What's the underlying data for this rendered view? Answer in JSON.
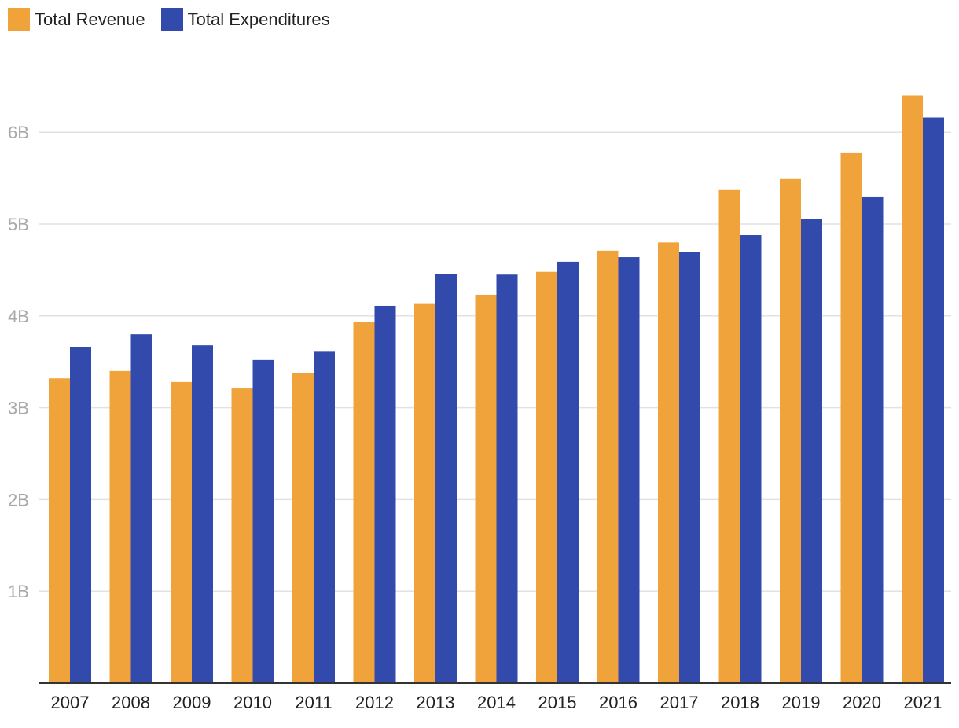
{
  "chart_data": {
    "type": "bar",
    "title": "",
    "xlabel": "",
    "ylabel": "",
    "categories": [
      "2007",
      "2008",
      "2009",
      "2010",
      "2011",
      "2012",
      "2013",
      "2014",
      "2015",
      "2016",
      "2017",
      "2018",
      "2019",
      "2020",
      "2021"
    ],
    "series": [
      {
        "name": "Total Revenue",
        "color": "#f0a33a",
        "values": [
          3.32,
          3.4,
          3.28,
          3.21,
          3.38,
          3.93,
          4.13,
          4.23,
          4.48,
          4.71,
          4.8,
          5.37,
          5.49,
          5.78,
          6.4
        ]
      },
      {
        "name": "Total Expenditures",
        "color": "#334aad",
        "values": [
          3.66,
          3.8,
          3.68,
          3.52,
          3.61,
          4.11,
          4.46,
          4.45,
          4.59,
          4.64,
          4.7,
          4.88,
          5.06,
          5.3,
          6.16
        ]
      }
    ],
    "ylim": [
      0,
      7.2
    ],
    "yticks": [
      1,
      2,
      3,
      4,
      5,
      6
    ],
    "ytick_labels": [
      "1B",
      "2B",
      "3B",
      "4B",
      "5B",
      "6B"
    ],
    "grid": true,
    "legend_position": "top-left"
  }
}
